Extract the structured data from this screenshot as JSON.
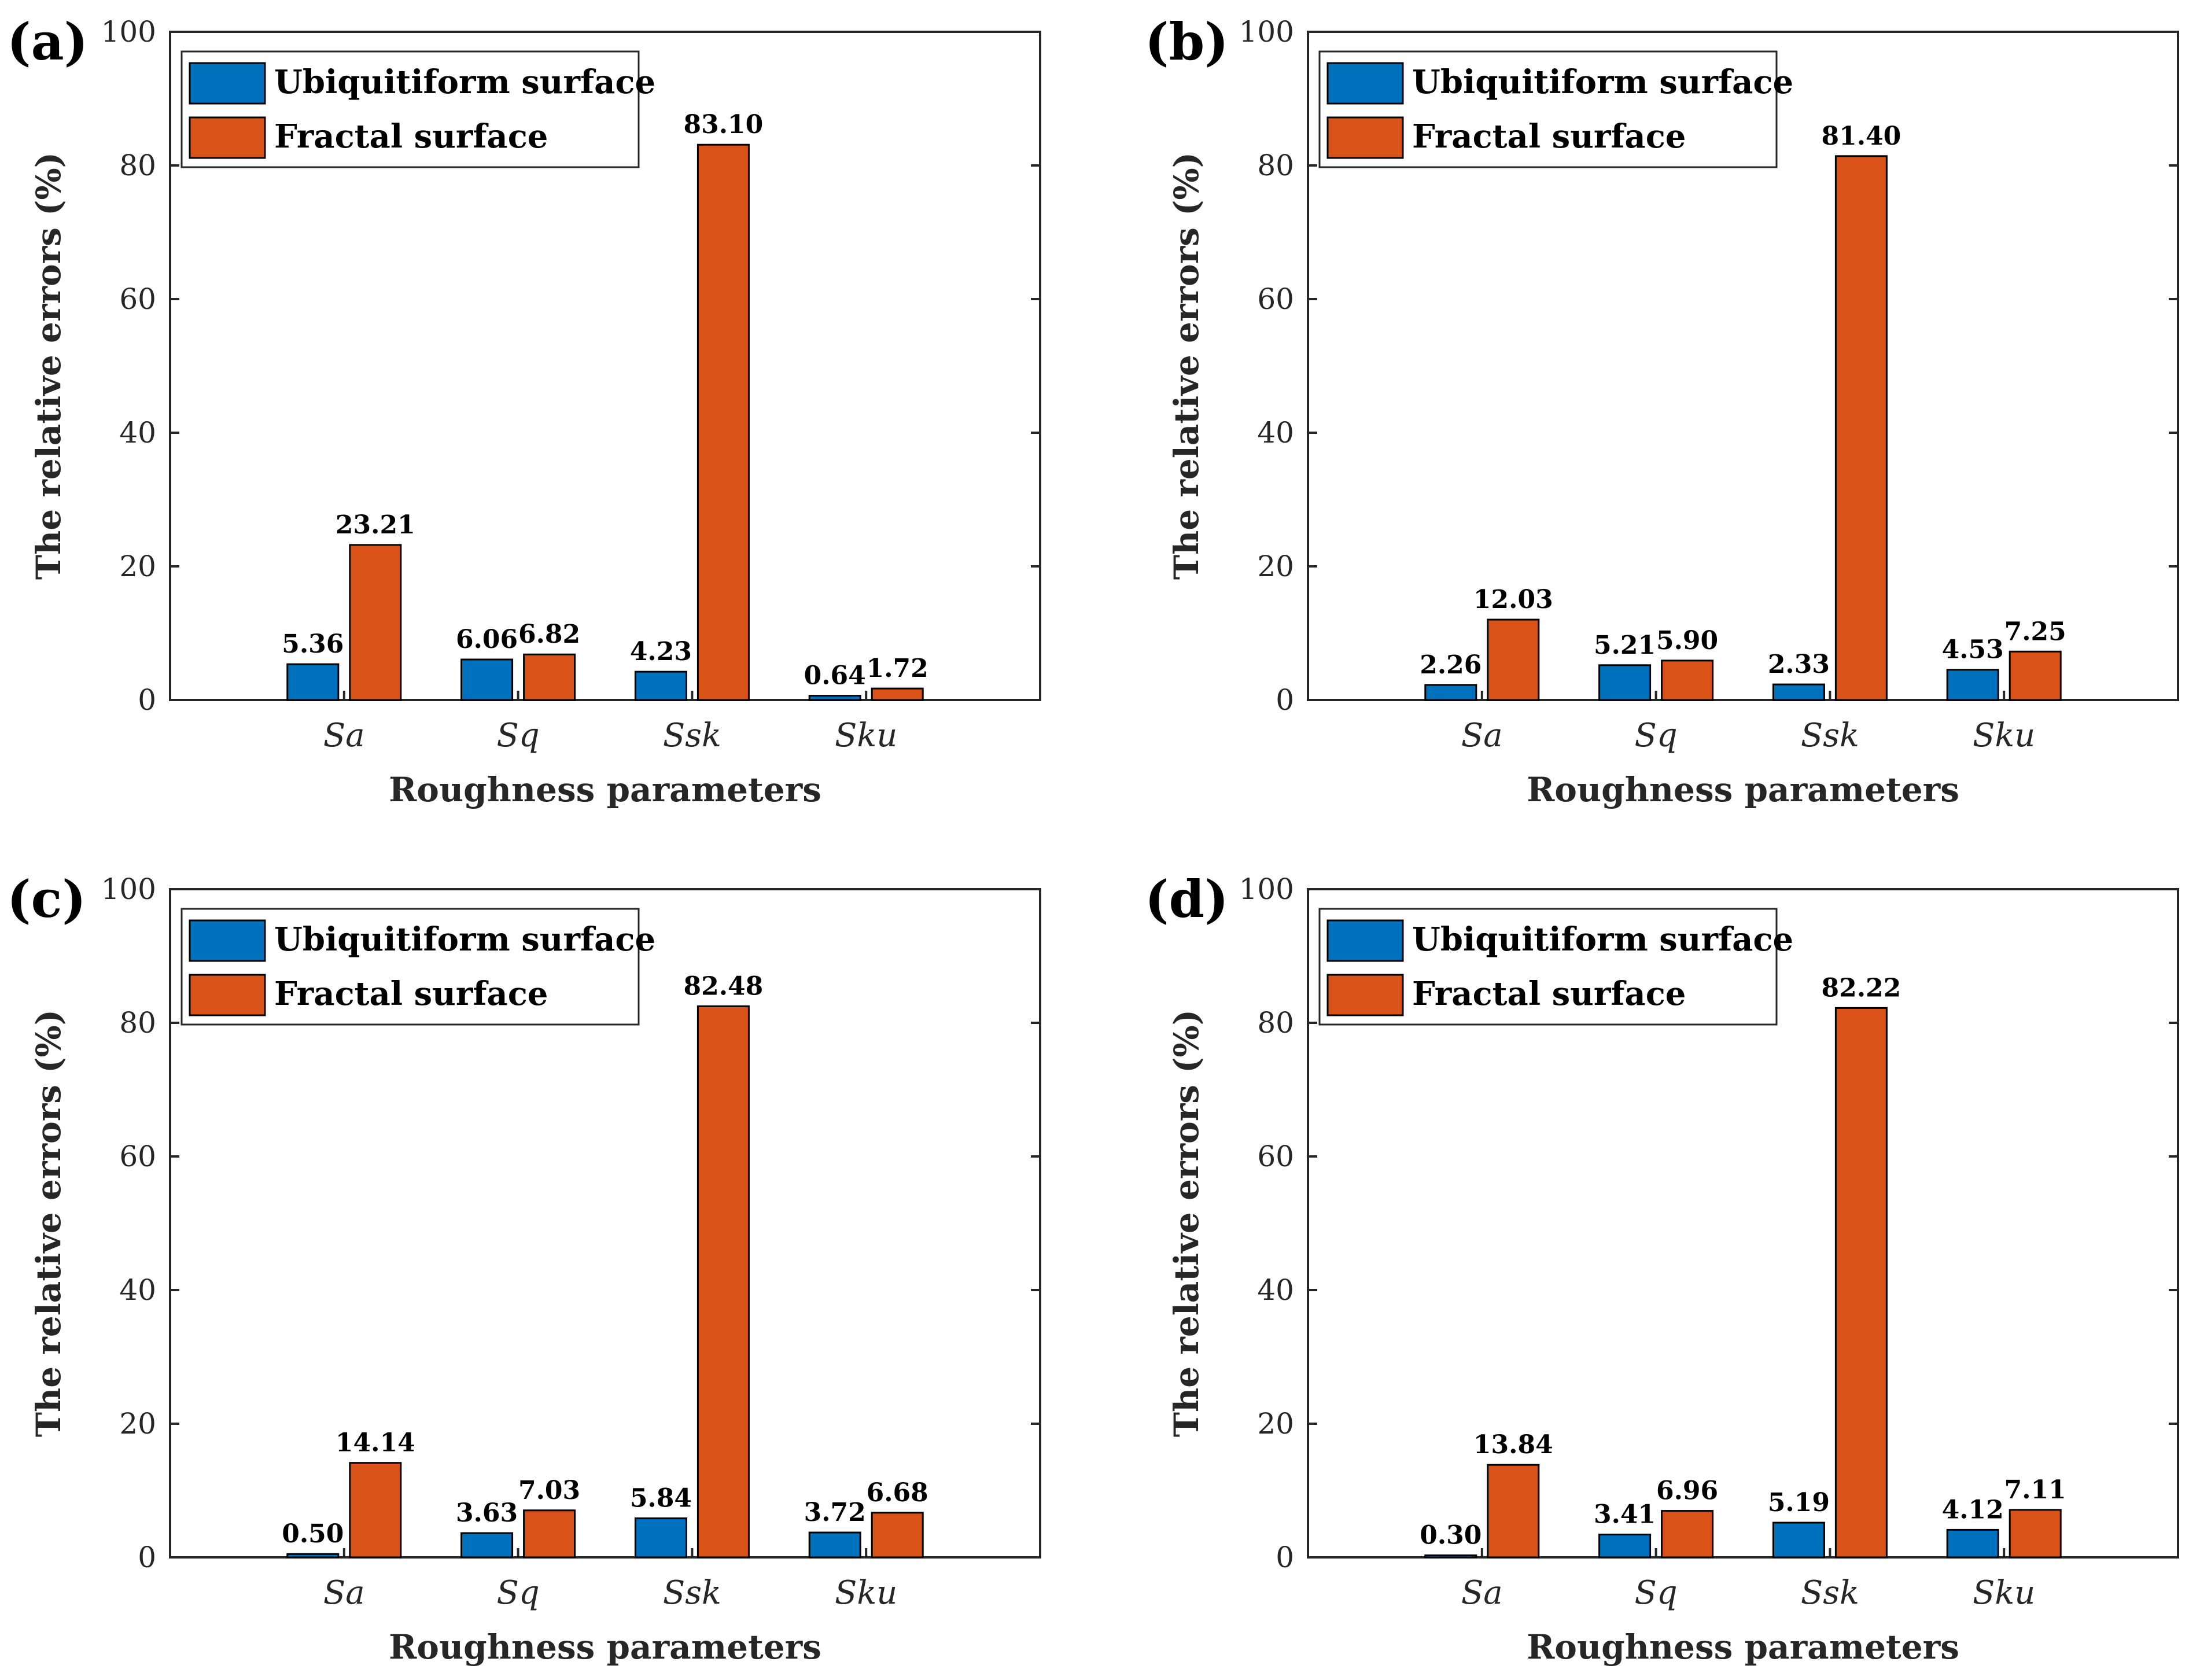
{
  "colors": {
    "ubiquitiform": "#0072BD",
    "fractal": "#D95319"
  },
  "chart_data": [
    {
      "panel": "(a)",
      "type": "bar",
      "categories": [
        "Sa",
        "Sq",
        "Ssk",
        "Sku"
      ],
      "series": [
        {
          "name": "Ubiquitiform surface",
          "values": [
            5.36,
            6.06,
            4.23,
            0.64
          ],
          "labels": [
            "5.36",
            "6.06",
            "4.23",
            "0.64"
          ]
        },
        {
          "name": "Fractal surface",
          "values": [
            23.21,
            6.82,
            83.1,
            1.72
          ],
          "labels": [
            "23.21",
            "6.82",
            "83.10",
            "1.72"
          ]
        }
      ],
      "xlabel": "Roughness parameters",
      "ylabel": "The relative errors (%)",
      "ylim": [
        0,
        100
      ],
      "yticks": [
        0,
        20,
        40,
        60,
        80,
        100
      ],
      "legend": "top-left"
    },
    {
      "panel": "(b)",
      "type": "bar",
      "categories": [
        "Sa",
        "Sq",
        "Ssk",
        "Sku"
      ],
      "series": [
        {
          "name": "Ubiquitiform surface",
          "values": [
            2.26,
            5.21,
            2.33,
            4.53
          ],
          "labels": [
            "2.26",
            "5.21",
            "2.33",
            "4.53"
          ]
        },
        {
          "name": "Fractal surface",
          "values": [
            12.03,
            5.9,
            81.4,
            7.25
          ],
          "labels": [
            "12.03",
            "5.90",
            "81.40",
            "7.25"
          ]
        }
      ],
      "xlabel": "Roughness parameters",
      "ylabel": "The relative errors (%)",
      "ylim": [
        0,
        100
      ],
      "yticks": [
        0,
        20,
        40,
        60,
        80,
        100
      ],
      "legend": "top-left"
    },
    {
      "panel": "(c)",
      "type": "bar",
      "categories": [
        "Sa",
        "Sq",
        "Ssk",
        "Sku"
      ],
      "series": [
        {
          "name": "Ubiquitiform surface",
          "values": [
            0.5,
            3.63,
            5.84,
            3.72
          ],
          "labels": [
            "0.50",
            "3.63",
            "5.84",
            "3.72"
          ]
        },
        {
          "name": "Fractal surface",
          "values": [
            14.14,
            7.03,
            82.48,
            6.68
          ],
          "labels": [
            "14.14",
            "7.03",
            "82.48",
            "6.68"
          ]
        }
      ],
      "xlabel": "Roughness parameters",
      "ylabel": "The relative errors (%)",
      "ylim": [
        0,
        100
      ],
      "yticks": [
        0,
        20,
        40,
        60,
        80,
        100
      ],
      "legend": "top-left"
    },
    {
      "panel": "(d)",
      "type": "bar",
      "categories": [
        "Sa",
        "Sq",
        "Ssk",
        "Sku"
      ],
      "series": [
        {
          "name": "Ubiquitiform surface",
          "values": [
            0.3,
            3.41,
            5.19,
            4.12
          ],
          "labels": [
            "0.30",
            "3.41",
            "5.19",
            "4.12"
          ]
        },
        {
          "name": "Fractal surface",
          "values": [
            13.84,
            6.96,
            82.22,
            7.11
          ],
          "labels": [
            "13.84",
            "6.96",
            "82.22",
            "7.11"
          ]
        }
      ],
      "xlabel": "Roughness parameters",
      "ylabel": "The relative errors (%)",
      "ylim": [
        0,
        100
      ],
      "yticks": [
        0,
        20,
        40,
        60,
        80,
        100
      ],
      "legend": "top-left"
    }
  ]
}
